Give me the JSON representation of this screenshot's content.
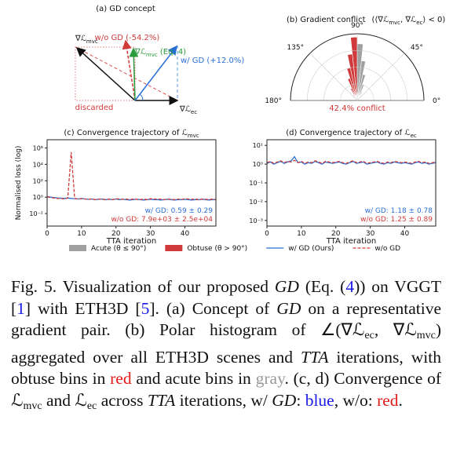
{
  "diagram": {
    "title": "(a) GD concept",
    "grad_mvc": {
      "main": "∇ℒ",
      "sub": "mvc"
    },
    "wo_gd": "w/o GD (-54.2%)",
    "eq": {
      "main": "∇ℒ",
      "sub": "mvc",
      "suffix": " (Eq. 4)"
    },
    "w_gd": "w/ GD (+12.0%)",
    "discarded": "discarded",
    "grad_ec": {
      "main": "∇ℒ",
      "sub": "ec"
    }
  },
  "chart_data": [
    {
      "type": "polar-histogram",
      "title": "(b) Gradient conflict",
      "condition": [
        "(⟨∇ℒ",
        "mvc",
        ", ∇ℒ",
        "ec",
        "⟩ < 0)"
      ],
      "thetalim": [
        0,
        180
      ],
      "rlim": [
        0,
        100
      ],
      "rticks": [
        25,
        50,
        75,
        100
      ],
      "thetaticks": [
        {
          "value": 0,
          "label": "0°"
        },
        {
          "value": 45,
          "label": "45°"
        },
        {
          "value": 90,
          "label": "90°"
        },
        {
          "value": 135,
          "label": "135°"
        },
        {
          "value": 180,
          "label": "180°"
        }
      ],
      "annotation": "42.4% conflict",
      "annotation_color": "#d03030",
      "series": [
        {
          "name": "Acute (θ ≤ 90°)",
          "color": "#a0a0a0",
          "bins": [
            54,
            60,
            66,
            72,
            78,
            84,
            90
          ],
          "values": [
            10,
            15,
            25,
            40,
            60,
            85
          ]
        },
        {
          "name": "Obtuse (θ > 90°)",
          "color": "#d03a3a",
          "bins": [
            90,
            96,
            102,
            108,
            114,
            120,
            126
          ],
          "values": [
            95,
            70,
            50,
            35,
            20,
            10
          ]
        }
      ]
    },
    {
      "type": "line",
      "title": "(c) Convergence trajectory of ℒ",
      "title_sub": "mvc",
      "ylabel": "Normalised loss  (log)",
      "xlabel": "TTA iteration",
      "log_y": true,
      "grid": false,
      "xlim": [
        0,
        49
      ],
      "xticks": [
        0,
        10,
        20,
        30,
        40
      ],
      "ylim": [
        0.0003,
        10000000
      ],
      "yticks": [
        {
          "value": 0.01,
          "label": "10⁻²"
        },
        {
          "value": 1,
          "label": "10⁰"
        },
        {
          "value": 100,
          "label": "10²"
        },
        {
          "value": 10000,
          "label": "10⁴"
        },
        {
          "value": 1000000,
          "label": "10⁶"
        }
      ],
      "x": [
        0,
        1,
        2,
        3,
        4,
        5,
        6,
        7,
        8,
        9,
        10,
        11,
        12,
        13,
        14,
        15,
        16,
        17,
        18,
        19,
        20,
        21,
        22,
        23,
        24,
        25,
        26,
        27,
        28,
        29,
        30,
        31,
        32,
        33,
        34,
        35,
        36,
        37,
        38,
        39,
        40,
        41,
        42,
        43,
        44,
        45,
        46,
        47,
        48,
        49
      ],
      "series": [
        {
          "name": "w/ GD (Ours)",
          "color": "#2a6fd6",
          "dash": false,
          "values": [
            1.2,
            1.0,
            0.9,
            0.8,
            0.75,
            0.7,
            0.8,
            0.7,
            0.65,
            0.6,
            0.7,
            0.6,
            0.55,
            0.6,
            0.5,
            0.55,
            0.6,
            0.5,
            0.55,
            0.5,
            0.6,
            0.5,
            0.55,
            0.5,
            0.45,
            0.5,
            0.55,
            0.5,
            0.45,
            0.5,
            0.55,
            0.5,
            0.5,
            0.45,
            0.5,
            0.55,
            0.5,
            0.45,
            0.5,
            0.5,
            0.55,
            0.5,
            0.45,
            0.5,
            0.5,
            0.55,
            0.5,
            0.45,
            0.5,
            0.5
          ]
        },
        {
          "name": "w/o GD",
          "color": "#d03a3a",
          "dash": true,
          "values": [
            1.1,
            0.9,
            0.8,
            0.7,
            0.7,
            0.6,
            0.8,
            300000,
            0.7,
            0.6,
            0.65,
            0.6,
            0.55,
            0.6,
            0.5,
            0.6,
            0.55,
            0.5,
            0.6,
            0.5,
            0.65,
            0.6,
            0.55,
            0.6,
            0.5,
            0.6,
            0.55,
            0.5,
            0.6,
            0.5,
            0.65,
            0.6,
            0.55,
            0.6,
            0.5,
            0.6,
            0.55,
            0.5,
            0.6,
            0.5,
            0.65,
            0.6,
            0.55,
            0.6,
            0.5,
            0.6,
            0.55,
            0.5,
            0.6,
            0.5
          ]
        }
      ],
      "annotations": [
        {
          "text": "w/ GD: 0.59 ± 0.29",
          "color": "#2a6fd6"
        },
        {
          "text": "w/o GD: 7.9e+03 ± 2.5e+04",
          "color": "#d03a3a"
        }
      ]
    },
    {
      "type": "line",
      "title": "(d) Convergence trajectory of ℒ",
      "title_sub": "ec",
      "xlabel": "TTA iteration",
      "log_y": true,
      "grid": false,
      "xlim": [
        0,
        49
      ],
      "xticks": [
        0,
        10,
        20,
        30,
        40
      ],
      "ylim": [
        0.0005,
        20
      ],
      "yticks": [
        {
          "value": 0.001,
          "label": "10⁻³"
        },
        {
          "value": 0.01,
          "label": "10⁻²"
        },
        {
          "value": 0.1,
          "label": "10⁻¹"
        },
        {
          "value": 1,
          "label": "10⁰"
        },
        {
          "value": 10,
          "label": "10¹"
        }
      ],
      "x": [
        0,
        1,
        2,
        3,
        4,
        5,
        6,
        7,
        8,
        9,
        10,
        11,
        12,
        13,
        14,
        15,
        16,
        17,
        18,
        19,
        20,
        21,
        22,
        23,
        24,
        25,
        26,
        27,
        28,
        29,
        30,
        31,
        32,
        33,
        34,
        35,
        36,
        37,
        38,
        39,
        40,
        41,
        42,
        43,
        44,
        45,
        46,
        47,
        48,
        49
      ],
      "series": [
        {
          "color": "#2a6fd6",
          "dash": false,
          "values": [
            1.1,
            1.3,
            1.0,
            1.2,
            1.4,
            1.1,
            1.3,
            1.5,
            2.5,
            1.2,
            1.3,
            1.0,
            1.2,
            1.1,
            1.4,
            1.2,
            1.0,
            1.3,
            1.2,
            1.1,
            1.2,
            1.3,
            1.1,
            1.0,
            1.2,
            1.4,
            1.1,
            1.2,
            1.3,
            1.0,
            1.1,
            1.2,
            1.3,
            1.1,
            1.0,
            1.2,
            1.1,
            1.3,
            1.2,
            1.1,
            1.2,
            1.1,
            1.0,
            1.2,
            1.3,
            1.1,
            1.2,
            1.0,
            1.1,
            1.2
          ]
        },
        {
          "color": "#d03a3a",
          "dash": true,
          "values": [
            1.2,
            1.4,
            1.1,
            1.3,
            1.5,
            1.2,
            1.4,
            1.3,
            1.6,
            1.2,
            1.4,
            1.1,
            1.3,
            1.2,
            1.5,
            1.3,
            1.1,
            1.4,
            1.3,
            1.2,
            1.3,
            1.4,
            1.2,
            1.1,
            1.3,
            1.5,
            1.2,
            1.3,
            1.4,
            1.1,
            1.2,
            1.3,
            1.4,
            1.2,
            1.1,
            1.3,
            1.2,
            1.4,
            1.3,
            1.2,
            1.3,
            1.2,
            1.1,
            1.3,
            1.4,
            1.2,
            1.3,
            1.1,
            1.2,
            1.3
          ]
        }
      ],
      "annotations": [
        {
          "text": "w/ GD: 1.18 ± 0.78",
          "color": "#2a6fd6"
        },
        {
          "text": "w/o GD: 1.25 ± 0.89",
          "color": "#d03a3a"
        }
      ]
    }
  ],
  "caption": [
    {
      "text": "Fig. 5.  Visualization of our proposed "
    },
    {
      "text": "GD",
      "style": "italic"
    },
    {
      "text": " (Eq. ("
    },
    {
      "text": "4",
      "style": "link"
    },
    {
      "text": ")) on VGGT ["
    },
    {
      "text": "1",
      "style": "link"
    },
    {
      "text": "] with ETH3D ["
    },
    {
      "text": "5",
      "style": "link"
    },
    {
      "text": "]. (a) Concept of "
    },
    {
      "text": "GD",
      "style": "italic"
    },
    {
      "text": " on a representative gradient pair. (b) Polar histogram of ∠(∇ℒ"
    },
    {
      "text": "ec",
      "style": "sub"
    },
    {
      "text": ", ∇ℒ"
    },
    {
      "text": "mvc",
      "style": "sub"
    },
    {
      "text": ") aggregated over all ETH3D scenes and "
    },
    {
      "text": "TTA",
      "style": "italic"
    },
    {
      "text": " iterations, with obtuse bins in "
    },
    {
      "text": "red",
      "style": "red"
    },
    {
      "text": " and acute bins in "
    },
    {
      "text": "gray",
      "style": "gray"
    },
    {
      "text": ". (c, d) Convergence of ℒ"
    },
    {
      "text": "mvc",
      "style": "sub"
    },
    {
      "text": " and ℒ"
    },
    {
      "text": "ec",
      "style": "sub"
    },
    {
      "text": " across "
    },
    {
      "text": "TTA",
      "style": "italic"
    },
    {
      "text": " iterations, w/ "
    },
    {
      "text": "GD",
      "style": "italic"
    },
    {
      "text": ": "
    },
    {
      "text": "blue",
      "style": "link"
    },
    {
      "text": ", w/o: "
    },
    {
      "text": "red",
      "style": "red"
    },
    {
      "text": "."
    }
  ]
}
